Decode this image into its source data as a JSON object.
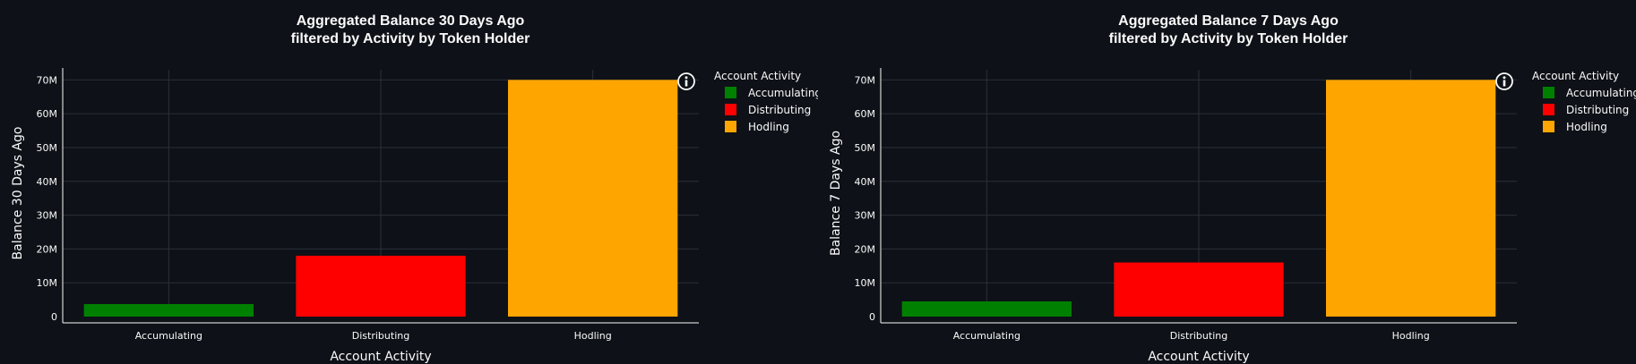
{
  "chart_data": [
    {
      "type": "bar",
      "title_line1": "Aggregated Balance 30 Days Ago",
      "title_line2": "filtered by Activity by Token Holder",
      "xlabel": "Account Activity",
      "ylabel": "Balance 30 Days Ago",
      "categories": [
        "Accumulating",
        "Distributing",
        "Hodling"
      ],
      "values": [
        3700000,
        18000000,
        70000000
      ],
      "colors": [
        "#008000",
        "#ff0000",
        "#ffa500"
      ],
      "ylim": [
        0,
        73000000
      ],
      "yticks": [
        0,
        10000000,
        20000000,
        30000000,
        40000000,
        50000000,
        60000000,
        70000000
      ],
      "ytick_labels": [
        "0",
        "10M",
        "20M",
        "30M",
        "40M",
        "50M",
        "60M",
        "70M"
      ],
      "legend_title": "Account Activity",
      "legend": [
        "Accumulating",
        "Distributing",
        "Hodling"
      ],
      "grid": true,
      "legend_position": "right"
    },
    {
      "type": "bar",
      "title_line1": "Aggregated Balance 7 Days Ago",
      "title_line2": "filtered by Activity by Token Holder",
      "xlabel": "Account Activity",
      "ylabel": "Balance 7 Days Ago",
      "categories": [
        "Accumulating",
        "Distributing",
        "Hodling"
      ],
      "values": [
        4500000,
        16000000,
        70000000
      ],
      "colors": [
        "#008000",
        "#ff0000",
        "#ffa500"
      ],
      "ylim": [
        0,
        73000000
      ],
      "yticks": [
        0,
        10000000,
        20000000,
        30000000,
        40000000,
        50000000,
        60000000,
        70000000
      ],
      "ytick_labels": [
        "0",
        "10M",
        "20M",
        "30M",
        "40M",
        "50M",
        "60M",
        "70M"
      ],
      "legend_title": "Account Activity",
      "legend": [
        "Accumulating",
        "Distributing",
        "Hodling"
      ],
      "grid": true,
      "legend_position": "right"
    }
  ],
  "info_icon": "info-icon"
}
